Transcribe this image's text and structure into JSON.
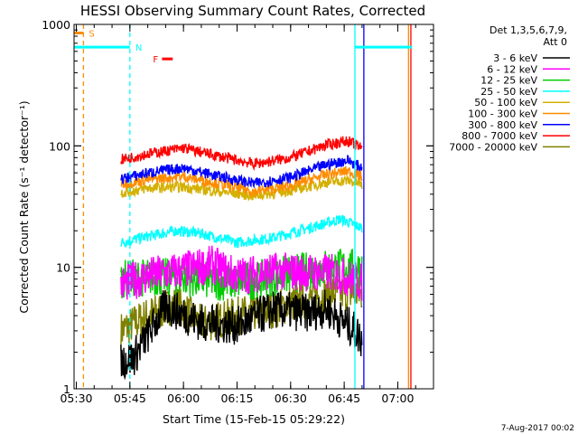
{
  "chart_data": {
    "type": "line",
    "title": "HESSI Observing Summary Count Rates, Corrected",
    "xlabel": "Start Time (15-Feb-15 05:29:22)",
    "ylabel": "Corrected Count Rate",
    "ylabel_units": "(s⁻¹ detector⁻¹)",
    "yscale": "log",
    "ylim": [
      1,
      1000
    ],
    "xlim": [
      "05:29:22",
      "07:10:00"
    ],
    "y_ticks": [
      {
        "v": 1,
        "label": "1"
      },
      {
        "v": 10,
        "label": "10"
      },
      {
        "v": 100,
        "label": "100"
      },
      {
        "v": 1000,
        "label": "1000"
      }
    ],
    "x_ticks": [
      {
        "t": "05:30",
        "label": "05:30"
      },
      {
        "t": "05:45",
        "label": "05:45"
      },
      {
        "t": "06:00",
        "label": "06:00"
      },
      {
        "t": "06:15",
        "label": "06:15"
      },
      {
        "t": "06:30",
        "label": "06:30"
      },
      {
        "t": "06:45",
        "label": "06:45"
      },
      {
        "t": "07:00",
        "label": "07:00"
      }
    ],
    "legend": {
      "placement": "outside-right",
      "header": [
        "Det 1,3,5,6,7,9,",
        "Att 0"
      ]
    },
    "series": [
      {
        "name": "3 - 6 keV",
        "color": "#000000",
        "values": [
          [
            [
              "05:42:30",
              1.7
            ],
            [
              "05:46",
              1.8
            ],
            [
              "05:55",
              4.8
            ],
            [
              "06:05",
              3.5
            ],
            [
              "06:15",
              3.3
            ],
            [
              "06:25",
              4.5
            ],
            [
              "06:35",
              4.2
            ],
            [
              "06:40",
              4.6
            ],
            [
              "06:48",
              3.0
            ],
            [
              "06:50",
              2.5
            ]
          ]
        ]
      },
      {
        "name": "6 - 12 keV",
        "color": "#ff00ff",
        "values": [
          [
            [
              "05:42:30",
              7.2
            ],
            [
              "05:50",
              8.5
            ],
            [
              "05:58",
              9.3
            ],
            [
              "06:08",
              10.5
            ],
            [
              "06:15",
              8.5
            ],
            [
              "06:25",
              9.3
            ],
            [
              "06:35",
              9.1
            ],
            [
              "06:42",
              9.0
            ],
            [
              "06:50",
              7.5
            ]
          ]
        ]
      },
      {
        "name": "12 - 25 keV",
        "color": "#00cc00",
        "values": [
          [
            [
              "05:42:30",
              8.0
            ],
            [
              "05:50",
              8.3
            ],
            [
              "06:00",
              8.3
            ],
            [
              "06:10",
              7.6
            ],
            [
              "06:20",
              7.8
            ],
            [
              "06:30",
              8.8
            ],
            [
              "06:40",
              10.0
            ],
            [
              "06:46",
              10.0
            ],
            [
              "06:50",
              9.8
            ]
          ]
        ]
      },
      {
        "name": "25 - 50 keV",
        "color": "#00ffff",
        "values": [
          [
            [
              "05:42:30",
              16.0
            ],
            [
              "05:50",
              18.0
            ],
            [
              "05:58",
              20.0
            ],
            [
              "06:05",
              19.0
            ],
            [
              "06:15",
              16.0
            ],
            [
              "06:25",
              17.5
            ],
            [
              "06:35",
              21.0
            ],
            [
              "06:44",
              25.0
            ],
            [
              "06:50",
              21.0
            ]
          ]
        ]
      },
      {
        "name": "50 - 100 keV",
        "color": "#d4b000",
        "values": [
          [
            [
              "05:42:30",
              41.0
            ],
            [
              "05:50",
              45.0
            ],
            [
              "06:00",
              46.0
            ],
            [
              "06:10",
              42.0
            ],
            [
              "06:20",
              39.0
            ],
            [
              "06:30",
              43.0
            ],
            [
              "06:40",
              50.0
            ],
            [
              "06:46",
              52.0
            ],
            [
              "06:50",
              48.0
            ]
          ]
        ]
      },
      {
        "name": "100 - 300 keV",
        "color": "#ff8c00",
        "values": [
          [
            [
              "05:42:30",
              48.0
            ],
            [
              "05:50",
              53.0
            ],
            [
              "06:00",
              56.0
            ],
            [
              "06:10",
              49.0
            ],
            [
              "06:20",
              42.0
            ],
            [
              "06:30",
              47.0
            ],
            [
              "06:40",
              58.0
            ],
            [
              "06:46",
              62.0
            ],
            [
              "06:50",
              56.0
            ]
          ]
        ]
      },
      {
        "name": "300 - 800 keV",
        "color": "#0000ff",
        "values": [
          [
            [
              "05:42:30",
              53.0
            ],
            [
              "05:50",
              60.0
            ],
            [
              "06:00",
              66.0
            ],
            [
              "06:10",
              56.0
            ],
            [
              "06:20",
              49.0
            ],
            [
              "06:30",
              55.0
            ],
            [
              "06:40",
              70.0
            ],
            [
              "06:46",
              76.0
            ],
            [
              "06:50",
              66.0
            ]
          ]
        ]
      },
      {
        "name": "800 - 7000 keV",
        "color": "#ff0000",
        "values": [
          [
            [
              "05:42:30",
              77.0
            ],
            [
              "05:50",
              86.0
            ],
            [
              "06:00",
              96.0
            ],
            [
              "06:10",
              82.0
            ],
            [
              "06:20",
              71.0
            ],
            [
              "06:30",
              80.0
            ],
            [
              "06:40",
              102.0
            ],
            [
              "06:46",
              110.0
            ],
            [
              "06:50",
              95.0
            ]
          ]
        ]
      },
      {
        "name": "7000 - 20000 keV",
        "color": "#808000",
        "values": [
          [
            [
              "05:42:30",
              3.0
            ],
            [
              "05:50",
              4.0
            ],
            [
              "05:58",
              5.0
            ],
            [
              "06:05",
              3.4
            ],
            [
              "06:15",
              4.0
            ],
            [
              "06:25",
              4.5
            ],
            [
              "06:35",
              5.5
            ],
            [
              "06:42",
              6.2
            ],
            [
              "06:50",
              6.0
            ]
          ]
        ]
      }
    ],
    "flags": [
      {
        "label": "S",
        "color": "#ff8c00",
        "segments": [
          [
            "05:29:22",
            "05:32"
          ]
        ],
        "level": 850
      },
      {
        "label": "N",
        "color": "#00ffff",
        "segments": [
          [
            "05:29:22",
            "05:45"
          ],
          [
            "06:48",
            "07:04"
          ]
        ],
        "level": 650
      },
      {
        "label": "F",
        "color": "#ff0000",
        "segments": [
          [
            "05:54",
            "05:57"
          ]
        ],
        "level": 520
      }
    ],
    "vlines": [
      {
        "t": "05:32",
        "color": "#ff8c00",
        "style": "dashed"
      },
      {
        "t": "05:45",
        "color": "#00ffff",
        "style": "dashed"
      },
      {
        "t": "06:48",
        "color": "#00ffff",
        "style": "solid"
      },
      {
        "t": "06:50:30",
        "color": "#0000ff",
        "style": "solid"
      },
      {
        "t": "07:03",
        "color": "#ff8c00",
        "style": "solid"
      },
      {
        "t": "07:03:40",
        "color": "#ff0000",
        "style": "solid"
      }
    ]
  },
  "footer": {
    "timestamp": "7-Aug-2017 00:02"
  }
}
